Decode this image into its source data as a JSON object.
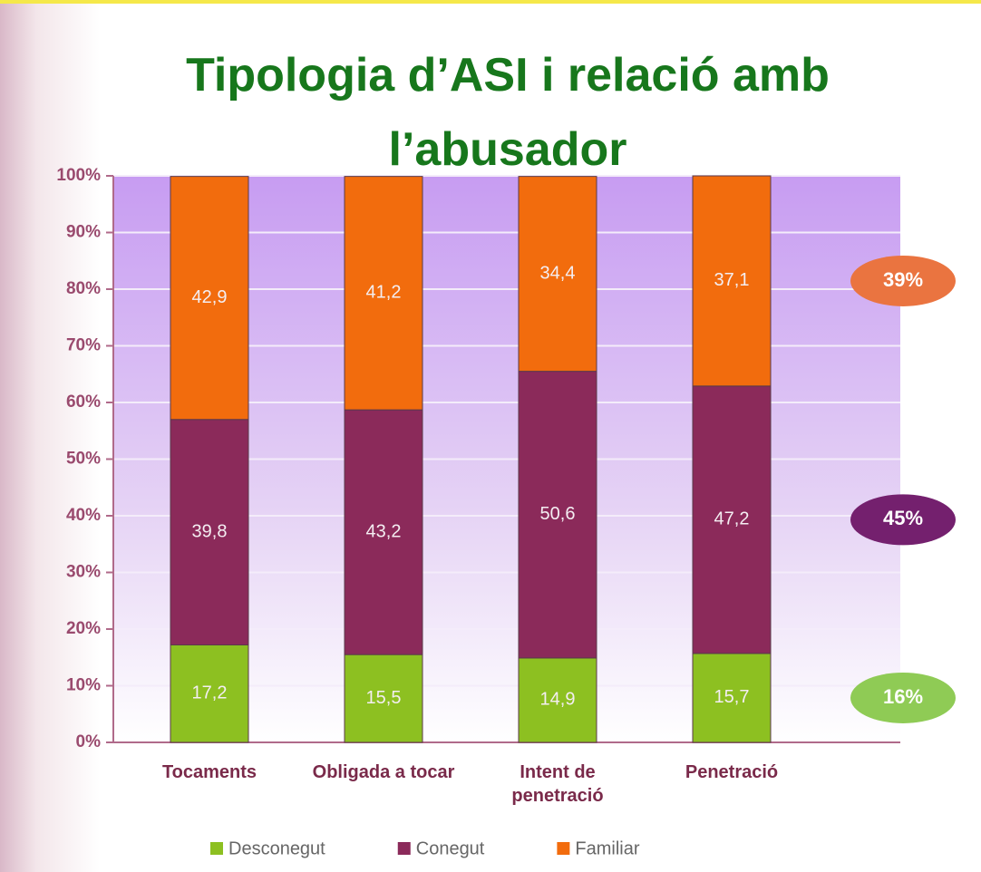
{
  "chart_data": {
    "type": "stacked_bar",
    "title": "Tipologia d’ASI i relació amb l’abusador",
    "categories": [
      "Tocaments",
      "Obligada a tocar",
      "Intent de penetració",
      "Penetració"
    ],
    "series": [
      {
        "name": "Desconegut",
        "color": "#8dc021",
        "values": [
          17.2,
          15.5,
          14.9,
          15.7
        ],
        "value_labels": [
          "17,2",
          "15,5",
          "14,9",
          "15,7"
        ],
        "annotation": "16%",
        "annotation_color": "#8fcb55"
      },
      {
        "name": "Conegut",
        "color": "#8b2a5a",
        "values": [
          39.8,
          43.2,
          50.6,
          47.2
        ],
        "value_labels": [
          "39,8",
          "43,2",
          "50,6",
          "47,2"
        ],
        "annotation": "45%",
        "annotation_color": "#74206e"
      },
      {
        "name": "Familiar",
        "color": "#f26c0d",
        "values": [
          42.9,
          41.2,
          34.4,
          37.1
        ],
        "value_labels": [
          "42,9",
          "41,2",
          "34,4",
          "37,1"
        ],
        "annotation": "39%",
        "annotation_color": "#ea7440"
      }
    ],
    "ylim": [
      0,
      100
    ],
    "yticks": [
      {
        "value": 0,
        "label": "0%"
      },
      {
        "value": 10,
        "label": "10%"
      },
      {
        "value": 20,
        "label": "20%"
      },
      {
        "value": 30,
        "label": "30%"
      },
      {
        "value": 40,
        "label": "40%"
      },
      {
        "value": 50,
        "label": "50%"
      },
      {
        "value": 60,
        "label": "60%"
      },
      {
        "value": 70,
        "label": "70%"
      },
      {
        "value": 80,
        "label": "80%"
      },
      {
        "value": 90,
        "label": "90%"
      },
      {
        "value": 100,
        "label": "100%"
      }
    ],
    "grid": true
  }
}
